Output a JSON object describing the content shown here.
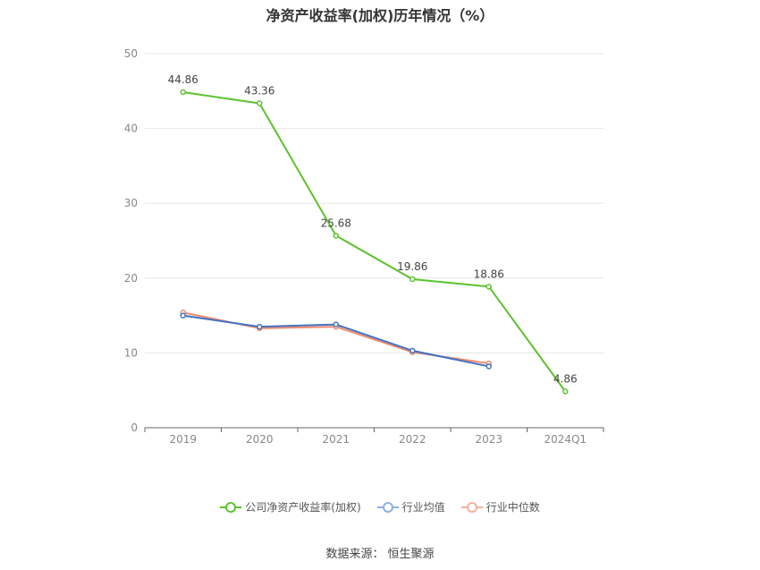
{
  "chart_data": {
    "type": "line",
    "title": "净资产收益率(加权)历年情况（%）",
    "categories": [
      "2019",
      "2020",
      "2021",
      "2022",
      "2023",
      "2024Q1"
    ],
    "ylim": [
      0,
      50
    ],
    "yticks": [
      0,
      10,
      20,
      30,
      40,
      50
    ],
    "grid": true,
    "legend_position": "bottom",
    "series": [
      {
        "name": "公司净资产收益率(加权)",
        "color": "#5cc22d",
        "values": [
          44.86,
          43.36,
          25.68,
          19.86,
          18.86,
          4.86
        ],
        "labels": [
          "44.86",
          "43.36",
          "25.68",
          "19.86",
          "18.86",
          "4.86"
        ]
      },
      {
        "name": "行业均值",
        "color": "#4472c4",
        "values": [
          15.0,
          13.5,
          13.8,
          10.3,
          8.2,
          null
        ]
      },
      {
        "name": "行业中位数",
        "color": "#f08c6e",
        "values": [
          15.4,
          13.3,
          13.5,
          10.1,
          8.6,
          null
        ]
      }
    ]
  },
  "legend": {
    "item0": "公司净资产收益率(加权)",
    "item1": "行业均值",
    "item2": "行业中位数"
  },
  "source": {
    "label": "数据来源：",
    "name": "恒生聚源"
  }
}
